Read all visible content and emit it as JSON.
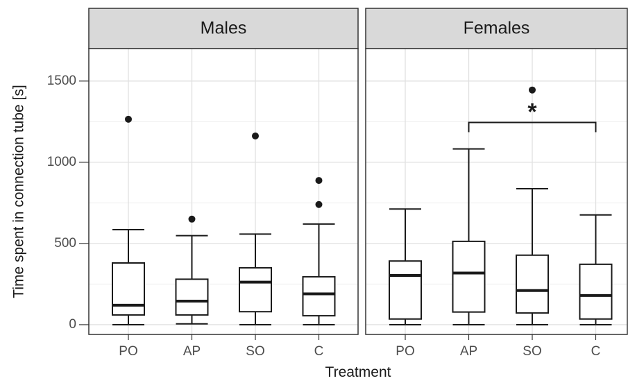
{
  "chart_data": {
    "type": "boxplot",
    "xlabel": "Treatment",
    "ylabel": "Time spent in connection tube [s]",
    "ylim": [
      -60,
      1700
    ],
    "yticks": [
      0,
      500,
      1000,
      1500
    ],
    "categories": [
      "PO",
      "AP",
      "SO",
      "C"
    ],
    "grid": true,
    "facets": [
      {
        "label": "Males",
        "boxes": [
          {
            "category": "PO",
            "lower_whisker": 0,
            "q1": 60,
            "median": 120,
            "q3": 380,
            "upper_whisker": 585,
            "outliers": [
              1265
            ]
          },
          {
            "category": "AP",
            "lower_whisker": 5,
            "q1": 60,
            "median": 145,
            "q3": 280,
            "upper_whisker": 548,
            "outliers": [
              650
            ]
          },
          {
            "category": "SO",
            "lower_whisker": 0,
            "q1": 80,
            "median": 262,
            "q3": 350,
            "upper_whisker": 558,
            "outliers": [
              1162
            ]
          },
          {
            "category": "C",
            "lower_whisker": 0,
            "q1": 55,
            "median": 190,
            "q3": 295,
            "upper_whisker": 620,
            "outliers": [
              740,
              888
            ]
          }
        ],
        "significance": []
      },
      {
        "label": "Females",
        "boxes": [
          {
            "category": "PO",
            "lower_whisker": 0,
            "q1": 35,
            "median": 303,
            "q3": 392,
            "upper_whisker": 712,
            "outliers": []
          },
          {
            "category": "AP",
            "lower_whisker": 0,
            "q1": 78,
            "median": 318,
            "q3": 513,
            "upper_whisker": 1082,
            "outliers": []
          },
          {
            "category": "SO",
            "lower_whisker": 0,
            "q1": 72,
            "median": 210,
            "q3": 428,
            "upper_whisker": 837,
            "outliers": [
              1445
            ]
          },
          {
            "category": "C",
            "lower_whisker": 0,
            "q1": 35,
            "median": 180,
            "q3": 372,
            "upper_whisker": 676,
            "outliers": []
          }
        ],
        "significance": [
          {
            "from": "AP",
            "to": "C",
            "y": 1245,
            "label": "*"
          }
        ]
      }
    ]
  }
}
